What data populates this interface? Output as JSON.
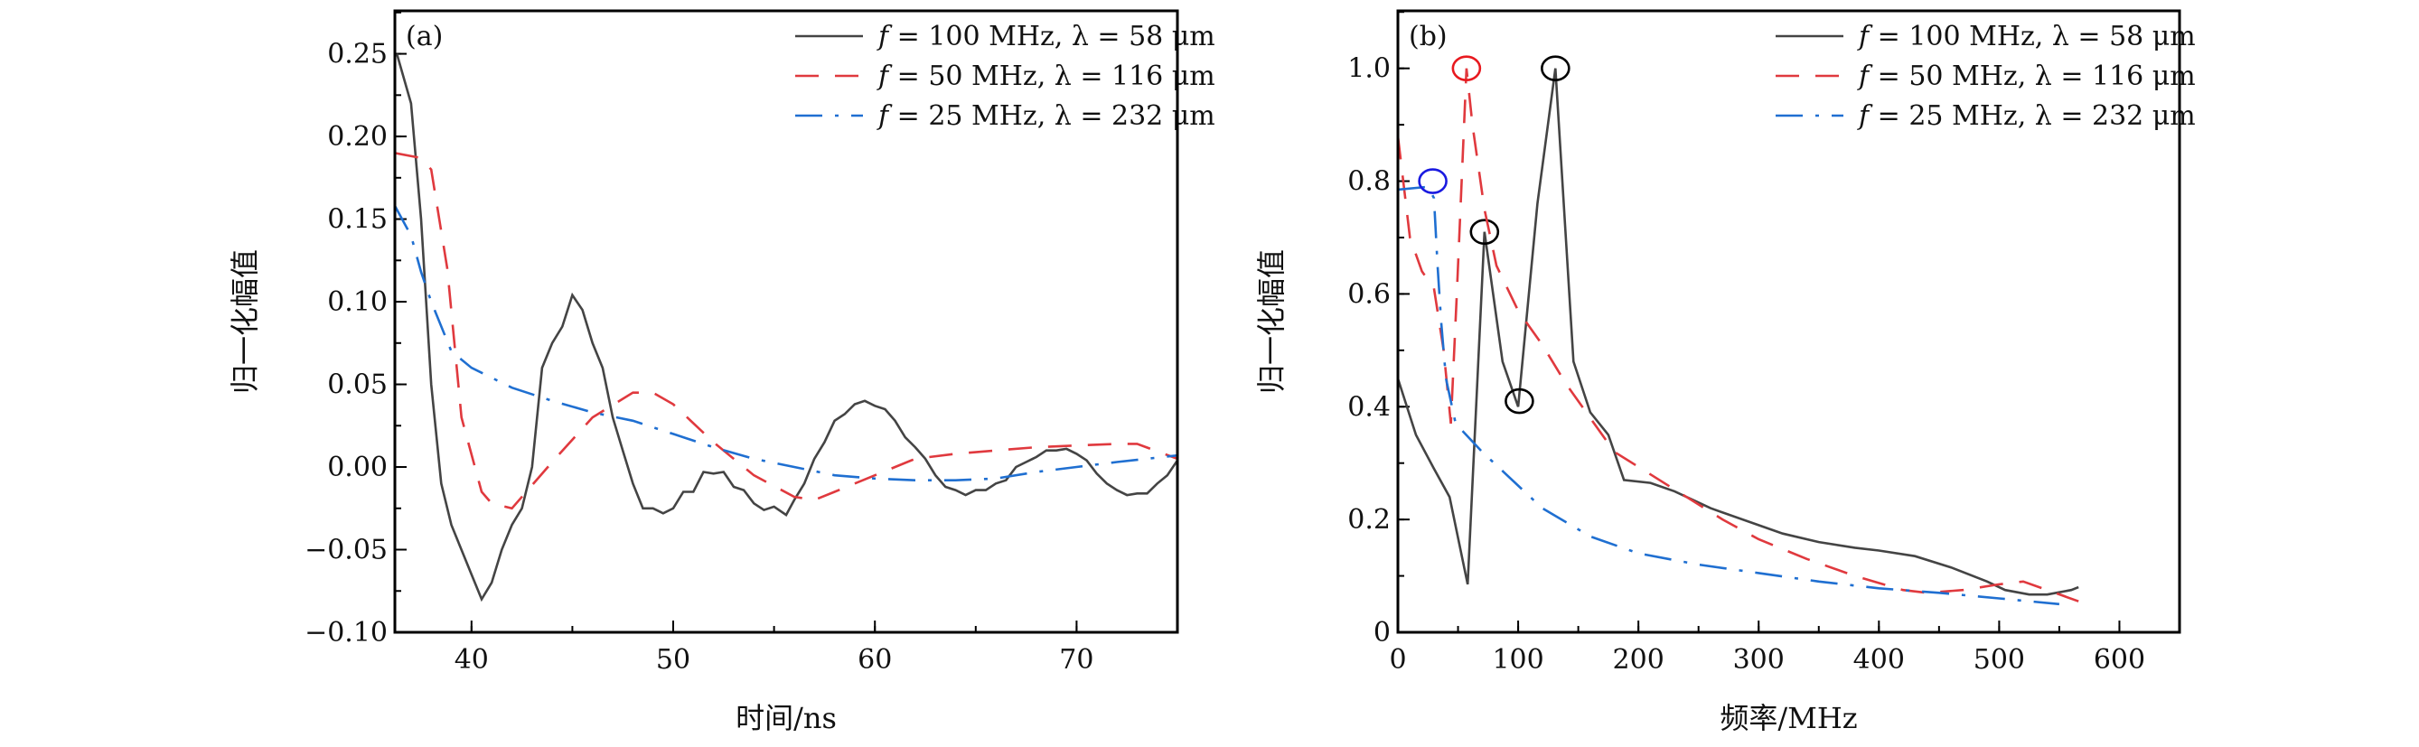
{
  "chart_data": [
    {
      "type": "line",
      "panel_label": "(a)",
      "xlabel": "时间/ns",
      "ylabel": "归一化幅值",
      "xlim": [
        36.2,
        75
      ],
      "ylim": [
        -0.1,
        0.276
      ],
      "xticks": [
        40,
        50,
        60,
        70
      ],
      "yticks": [
        -0.1,
        -0.05,
        0.0,
        0.05,
        0.1,
        0.15,
        0.2,
        0.25
      ],
      "ytick_labels": [
        "−0.10",
        "−0.05",
        "0.00",
        "0.05",
        "0.10",
        "0.15",
        "0.20",
        "0.25"
      ],
      "legend_position": "top-right",
      "series": [
        {
          "name": "f = 100 MHz, λ = 58 μm",
          "var": "f",
          "rest": " = 100 MHz, λ = 58 μm",
          "color": "#444444",
          "style": "solid",
          "x": [
            36.3,
            37,
            37.5,
            38,
            38.5,
            39,
            40,
            40.5,
            41,
            41.5,
            42,
            42.5,
            43,
            43.5,
            44,
            44.5,
            45,
            45.5,
            46,
            46.5,
            47,
            47.5,
            48,
            48.5,
            49,
            49.5,
            50,
            50.5,
            51,
            51.5,
            52,
            52.5,
            53,
            53.5,
            54,
            54.5,
            55,
            55.6,
            56,
            56.5,
            57,
            57.5,
            58,
            58.5,
            59,
            59.5,
            60,
            60.5,
            61,
            61.5,
            62,
            62.5,
            63,
            63.5,
            64,
            64.5,
            65,
            65.5,
            66,
            66.5,
            67,
            67.5,
            68,
            68.5,
            69,
            69.5,
            70,
            70.5,
            71,
            71.5,
            72,
            72.5,
            73,
            73.5,
            74,
            74.5,
            75
          ],
          "y": [
            0.25,
            0.22,
            0.15,
            0.05,
            -0.01,
            -0.035,
            -0.065,
            -0.08,
            -0.07,
            -0.05,
            -0.035,
            -0.025,
            0.0,
            0.06,
            0.075,
            0.085,
            0.104,
            0.095,
            0.075,
            0.06,
            0.03,
            0.01,
            -0.01,
            -0.025,
            -0.025,
            -0.028,
            -0.025,
            -0.015,
            -0.015,
            -0.003,
            -0.004,
            -0.003,
            -0.012,
            -0.014,
            -0.022,
            -0.026,
            -0.024,
            -0.029,
            -0.02,
            -0.01,
            0.005,
            0.015,
            0.028,
            0.032,
            0.038,
            0.04,
            0.037,
            0.035,
            0.028,
            0.018,
            0.012,
            0.005,
            -0.005,
            -0.012,
            -0.014,
            -0.017,
            -0.014,
            -0.014,
            -0.01,
            -0.008,
            0.0,
            0.003,
            0.006,
            0.01,
            0.01,
            0.011,
            0.008,
            0.004,
            -0.004,
            -0.01,
            -0.014,
            -0.017,
            -0.016,
            -0.016,
            -0.01,
            -0.005,
            0.004
          ]
        },
        {
          "name": "f = 50 MHz, λ = 116 μm",
          "var": "f",
          "rest": " = 50 MHz, λ = 116 μm",
          "color": "#e0393e",
          "style": "dash",
          "x": [
            36.2,
            37.5,
            38,
            38.8,
            39.5,
            40.5,
            41,
            42,
            44,
            46,
            48,
            49,
            50,
            52,
            54,
            56,
            57,
            58,
            60,
            62,
            64,
            66,
            68,
            70,
            72,
            73,
            75
          ],
          "y": [
            0.19,
            0.187,
            0.18,
            0.12,
            0.03,
            -0.015,
            -0.022,
            -0.025,
            0.003,
            0.03,
            0.045,
            0.045,
            0.038,
            0.015,
            -0.005,
            -0.018,
            -0.02,
            -0.015,
            -0.005,
            0.005,
            0.008,
            0.01,
            0.012,
            0.013,
            0.014,
            0.014,
            0.005
          ]
        },
        {
          "name": "f = 25 MHz, λ = 232 μm",
          "var": "f",
          "rest": " = 25 MHz, λ = 232 μm",
          "color": "#1f6fd1",
          "style": "dashdot",
          "x": [
            36.2,
            37,
            37.5,
            38,
            39,
            40,
            42,
            44,
            46,
            48,
            50,
            52,
            54,
            56,
            58,
            60,
            62,
            64,
            66,
            68,
            70,
            72,
            75
          ],
          "y": [
            0.158,
            0.14,
            0.118,
            0.1,
            0.07,
            0.06,
            0.048,
            0.04,
            0.033,
            0.028,
            0.02,
            0.012,
            0.005,
            0.0,
            -0.005,
            -0.007,
            -0.008,
            -0.008,
            -0.007,
            -0.003,
            0.0,
            0.003,
            0.007
          ]
        }
      ]
    },
    {
      "type": "line",
      "panel_label": "(b)",
      "xlabel": "频率/MHz",
      "ylabel": "归一化幅值",
      "xlim": [
        0,
        650
      ],
      "ylim": [
        0,
        1.102
      ],
      "xticks": [
        0,
        100,
        200,
        300,
        400,
        500,
        600
      ],
      "yticks": [
        0,
        0.2,
        0.4,
        0.6,
        0.8,
        1.0
      ],
      "ytick_labels": [
        "0",
        "0.2",
        "0.4",
        "0.6",
        "0.8",
        "1.0"
      ],
      "legend_position": "top-right",
      "series": [
        {
          "name": "f = 100 MHz, λ = 58 μm",
          "var": "f",
          "rest": " = 100 MHz, λ = 58 μm",
          "color": "#444444",
          "style": "solid",
          "x": [
            0,
            15,
            30,
            43,
            58,
            72,
            87,
            100,
            116,
            131,
            146,
            160,
            175,
            188,
            210,
            230,
            260,
            300,
            320,
            350,
            380,
            400,
            430,
            460,
            490,
            505,
            525,
            540,
            560,
            566
          ],
          "y": [
            0.45,
            0.35,
            0.29,
            0.24,
            0.085,
            0.71,
            0.48,
            0.4,
            0.76,
            1.0,
            0.48,
            0.39,
            0.35,
            0.27,
            0.265,
            0.25,
            0.22,
            0.19,
            0.175,
            0.16,
            0.15,
            0.145,
            0.135,
            0.115,
            0.09,
            0.075,
            0.067,
            0.067,
            0.075,
            0.08
          ],
          "markers": [
            [
              72,
              0.71
            ],
            [
              101,
              0.41
            ],
            [
              131,
              1.0
            ]
          ],
          "marker_color": "#000000"
        },
        {
          "name": "f = 50 MHz, λ = 116 μm",
          "var": "f",
          "rest": " = 50 MHz, λ = 116 μm",
          "color": "#e0393e",
          "style": "dash",
          "x": [
            0,
            10,
            20,
            30,
            38,
            44,
            49,
            54,
            57,
            62,
            72,
            82,
            100,
            120,
            140,
            160,
            180,
            210,
            240,
            270,
            300,
            340,
            380,
            420,
            440,
            470,
            500,
            520,
            540,
            566
          ],
          "y": [
            0.88,
            0.7,
            0.64,
            0.61,
            0.5,
            0.37,
            0.6,
            0.85,
            1.0,
            0.9,
            0.75,
            0.65,
            0.57,
            0.51,
            0.44,
            0.38,
            0.32,
            0.28,
            0.24,
            0.2,
            0.165,
            0.13,
            0.1,
            0.075,
            0.07,
            0.075,
            0.085,
            0.09,
            0.075,
            0.055
          ],
          "markers": [
            [
              57,
              1.0
            ]
          ],
          "marker_color": "#e8191f"
        },
        {
          "name": "f = 25 MHz, λ = 232 μm",
          "var": "f",
          "rest": " = 25 MHz, λ = 232 μm",
          "color": "#1f6fd1",
          "style": "dashdot",
          "x": [
            0,
            25,
            30,
            33,
            36,
            40,
            48,
            70,
            90,
            120,
            160,
            200,
            250,
            300,
            350,
            400,
            450,
            500,
            550
          ],
          "y": [
            0.785,
            0.79,
            0.77,
            0.65,
            0.55,
            0.45,
            0.37,
            0.32,
            0.28,
            0.22,
            0.17,
            0.14,
            0.12,
            0.105,
            0.09,
            0.078,
            0.07,
            0.06,
            0.05
          ],
          "markers": [
            [
              29,
              0.8
            ]
          ],
          "marker_color": "#1a1ae0"
        }
      ]
    }
  ]
}
